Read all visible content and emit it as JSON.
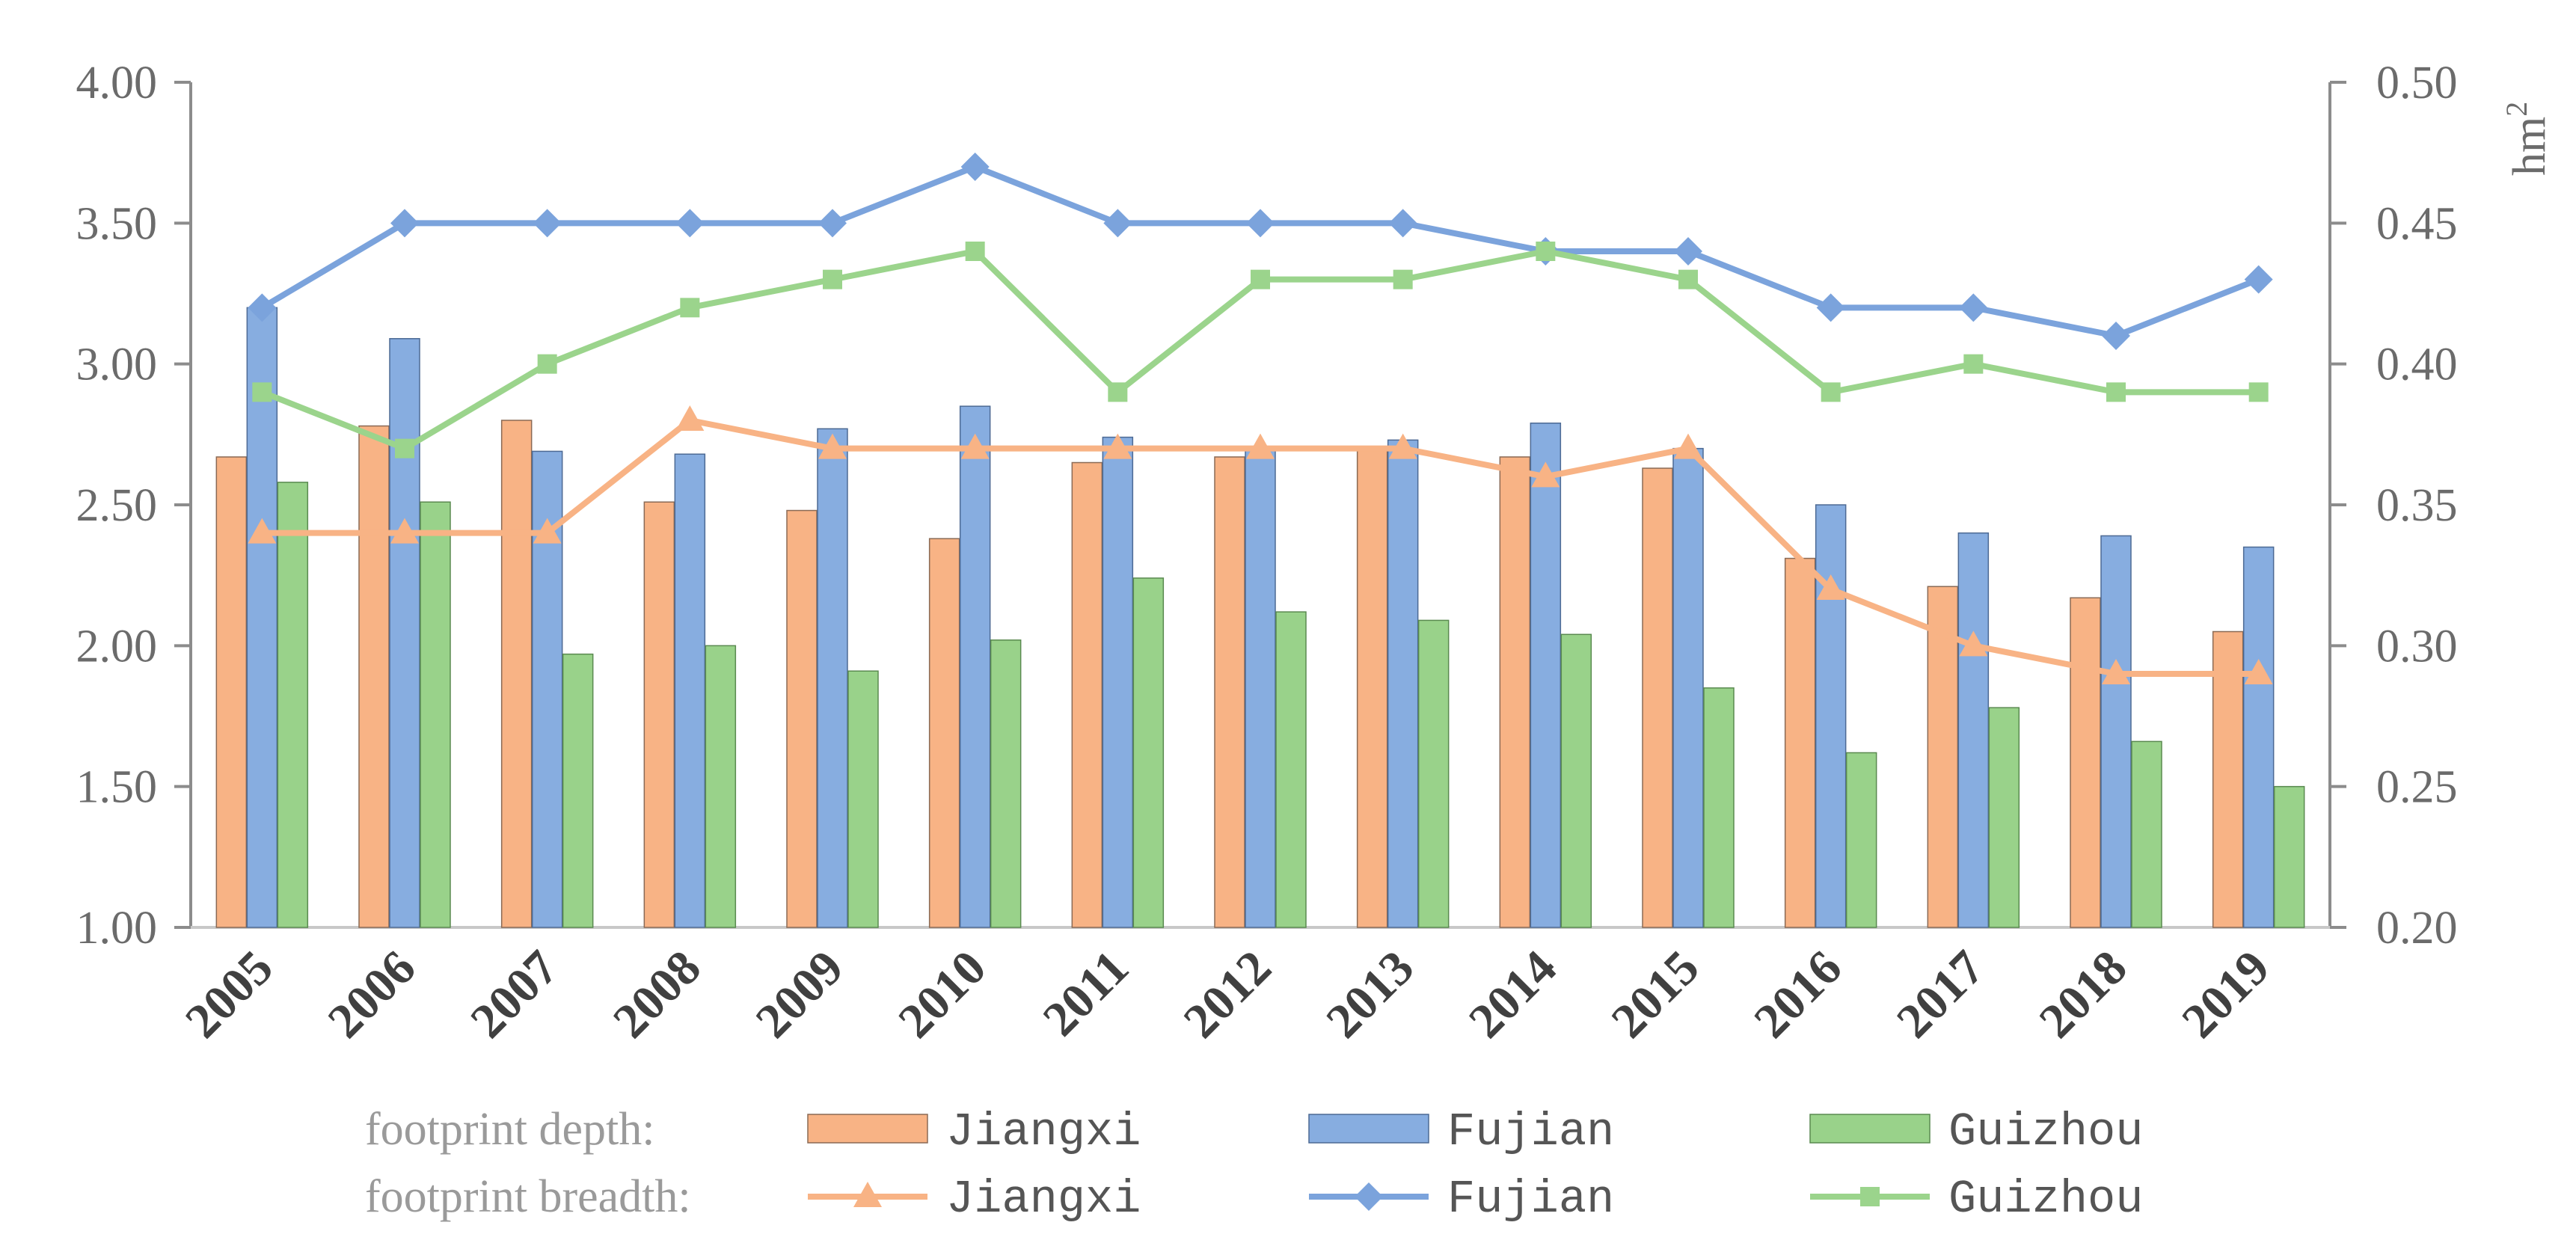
{
  "chart_data": {
    "type": "bar",
    "categories": [
      "2005",
      "2006",
      "2007",
      "2008",
      "2009",
      "2010",
      "2011",
      "2012",
      "2013",
      "2014",
      "2015",
      "2016",
      "2017",
      "2018",
      "2019"
    ],
    "y_left": {
      "range": [
        1.0,
        4.0
      ],
      "ticks": [
        "1.00",
        "1.50",
        "2.00",
        "2.50",
        "3.00",
        "3.50",
        "4.00"
      ]
    },
    "y_right": {
      "range": [
        0.2,
        0.5
      ],
      "ticks": [
        "0.20",
        "0.25",
        "0.30",
        "0.35",
        "0.40",
        "0.45",
        "0.50"
      ],
      "unit_base": "hm",
      "unit_exp": "2"
    },
    "legend": {
      "depth_heading": "footprint depth:",
      "breadth_heading": "footprint breadth:"
    },
    "bar_series": [
      {
        "name": "Jiangxi",
        "color": "#f8b385",
        "stroke": "#8a6a55",
        "values": [
          2.67,
          2.78,
          2.8,
          2.51,
          2.48,
          2.38,
          2.65,
          2.67,
          2.7,
          2.67,
          2.63,
          2.31,
          2.21,
          2.17,
          2.05
        ]
      },
      {
        "name": "Fujian",
        "color": "#87ade0",
        "stroke": "#4d6a94",
        "values": [
          3.2,
          3.09,
          2.69,
          2.68,
          2.77,
          2.85,
          2.74,
          2.7,
          2.73,
          2.79,
          2.7,
          2.5,
          2.4,
          2.39,
          2.35
        ]
      },
      {
        "name": "Guizhou",
        "color": "#99d28a",
        "stroke": "#5a8a50",
        "values": [
          2.58,
          2.51,
          1.97,
          2.0,
          1.91,
          2.02,
          2.24,
          2.12,
          2.09,
          2.04,
          1.85,
          1.62,
          1.78,
          1.66,
          1.5
        ]
      }
    ],
    "line_series": [
      {
        "name": "Jiangxi",
        "color": "#f8b385",
        "marker": "triangle",
        "values": [
          0.34,
          0.34,
          0.34,
          0.38,
          0.37,
          0.37,
          0.37,
          0.37,
          0.37,
          0.36,
          0.37,
          0.32,
          0.3,
          0.29,
          0.29
        ]
      },
      {
        "name": "Fujian",
        "color": "#7ba3dc",
        "marker": "diamond",
        "values": [
          0.42,
          0.45,
          0.45,
          0.45,
          0.45,
          0.47,
          0.45,
          0.45,
          0.45,
          0.44,
          0.44,
          0.42,
          0.42,
          0.41,
          0.43
        ]
      },
      {
        "name": "Guizhou",
        "color": "#9bd48c",
        "marker": "square",
        "values": [
          0.39,
          0.37,
          0.4,
          0.42,
          0.43,
          0.44,
          0.39,
          0.43,
          0.43,
          0.44,
          0.43,
          0.39,
          0.4,
          0.39,
          0.39
        ]
      }
    ]
  }
}
